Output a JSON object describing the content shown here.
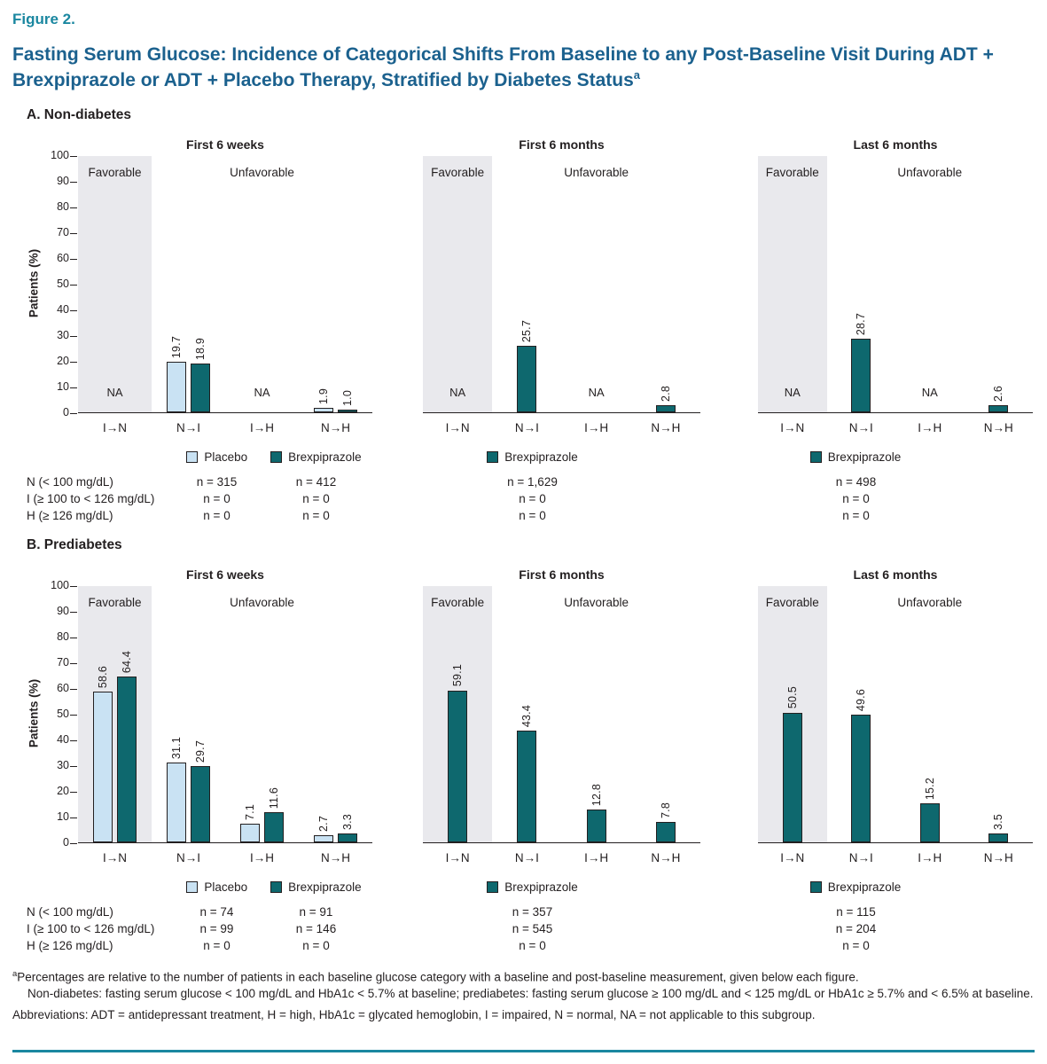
{
  "figure": {
    "label": "Figure 2.",
    "title": "Fasting Serum Glucose: Incidence of Categorical Shifts From Baseline to any Post-Baseline Visit During ADT + Brexpiprazole or ADT + Placebo Therapy, Stratified by Diabetes Status",
    "title_superscript": "a"
  },
  "colors": {
    "figure_label": "#1A87A0",
    "title": "#1B618E",
    "text": "#231F20",
    "bar_border": "#231F20",
    "placebo": "#C9E2F3",
    "brexpiprazole": "#0E686E",
    "favorable_band": "#E9E9ED",
    "rule": "#1A87A0"
  },
  "chart_data": [
    {
      "type": "bar",
      "panel_label": "A. Non-diabetes",
      "ylabel": "Patients (%)",
      "ylim": [
        0,
        100
      ],
      "ytick_step": 10,
      "grid": false,
      "legend_position": "below",
      "categories": [
        "I→N",
        "N→I",
        "I→H",
        "N→H"
      ],
      "region_labels": {
        "favorable": "Favorable",
        "unfavorable": "Unfavorable"
      },
      "na_label": "NA",
      "row_labels": [
        "N (< 100 mg/dL)",
        "I (≥ 100 to < 126 mg/dL)",
        "H (≥ 126 mg/dL)"
      ],
      "subcharts": [
        {
          "title": "First 6 weeks",
          "series": [
            {
              "name": "Placebo",
              "color_key": "placebo",
              "values": [
                null,
                19.7,
                null,
                1.9
              ],
              "n_values": [
                "n = 315",
                "n = 0",
                "n = 0"
              ]
            },
            {
              "name": "Brexpiprazole",
              "color_key": "brexpiprazole",
              "values": [
                null,
                18.9,
                null,
                1.0
              ],
              "n_values": [
                "n = 412",
                "n = 0",
                "n = 0"
              ]
            }
          ],
          "na_categories": [
            0,
            2
          ]
        },
        {
          "title": "First 6 months",
          "series": [
            {
              "name": "Brexpiprazole",
              "color_key": "brexpiprazole",
              "values": [
                null,
                25.7,
                null,
                2.8
              ],
              "n_values": [
                "n = 1,629",
                "n = 0",
                "n = 0"
              ]
            }
          ],
          "na_categories": [
            0,
            2
          ]
        },
        {
          "title": "Last 6 months",
          "series": [
            {
              "name": "Brexpiprazole",
              "color_key": "brexpiprazole",
              "values": [
                null,
                28.7,
                null,
                2.6
              ],
              "n_values": [
                "n = 498",
                "n = 0",
                "n = 0"
              ]
            }
          ],
          "na_categories": [
            0,
            2
          ]
        }
      ]
    },
    {
      "type": "bar",
      "panel_label": "B. Prediabetes",
      "ylabel": "Patients (%)",
      "ylim": [
        0,
        100
      ],
      "ytick_step": 10,
      "grid": false,
      "legend_position": "below",
      "categories": [
        "I→N",
        "N→I",
        "I→H",
        "N→H"
      ],
      "region_labels": {
        "favorable": "Favorable",
        "unfavorable": "Unfavorable"
      },
      "na_label": "NA",
      "row_labels": [
        "N (< 100 mg/dL)",
        "I (≥ 100 to < 126 mg/dL)",
        "H (≥ 126 mg/dL)"
      ],
      "subcharts": [
        {
          "title": "First 6 weeks",
          "series": [
            {
              "name": "Placebo",
              "color_key": "placebo",
              "values": [
                58.6,
                31.1,
                7.1,
                2.7
              ],
              "n_values": [
                "n = 74",
                "n = 99",
                "n = 0"
              ]
            },
            {
              "name": "Brexpiprazole",
              "color_key": "brexpiprazole",
              "values": [
                64.4,
                29.7,
                11.6,
                3.3
              ],
              "n_values": [
                "n = 91",
                "n = 146",
                "n = 0"
              ]
            }
          ],
          "na_categories": []
        },
        {
          "title": "First 6 months",
          "series": [
            {
              "name": "Brexpiprazole",
              "color_key": "brexpiprazole",
              "values": [
                59.1,
                43.4,
                12.8,
                7.8
              ],
              "n_values": [
                "n = 357",
                "n = 545",
                "n = 0"
              ]
            }
          ],
          "na_categories": []
        },
        {
          "title": "Last 6 months",
          "series": [
            {
              "name": "Brexpiprazole",
              "color_key": "brexpiprazole",
              "values": [
                50.5,
                49.6,
                15.2,
                3.5
              ],
              "n_values": [
                "n = 115",
                "n = 204",
                "n = 0"
              ]
            }
          ],
          "na_categories": []
        }
      ]
    }
  ],
  "footnotes": {
    "superscript": "a",
    "line1": "Percentages are relative to the number of patients in each baseline glucose category with a baseline and post-baseline measurement, given below each figure.",
    "line2": "Non-diabetes: fasting serum glucose < 100 mg/dL and HbA1c < 5.7% at baseline; prediabetes: fasting serum glucose ≥ 100 mg/dL and < 125 mg/dL or HbA1c ≥ 5.7% and < 6.5% at baseline.",
    "abbreviations": "Abbreviations: ADT = antidepressant treatment, H = high, HbA1c = glycated hemoglobin, I = impaired, N = normal, NA = not applicable to this subgroup."
  }
}
